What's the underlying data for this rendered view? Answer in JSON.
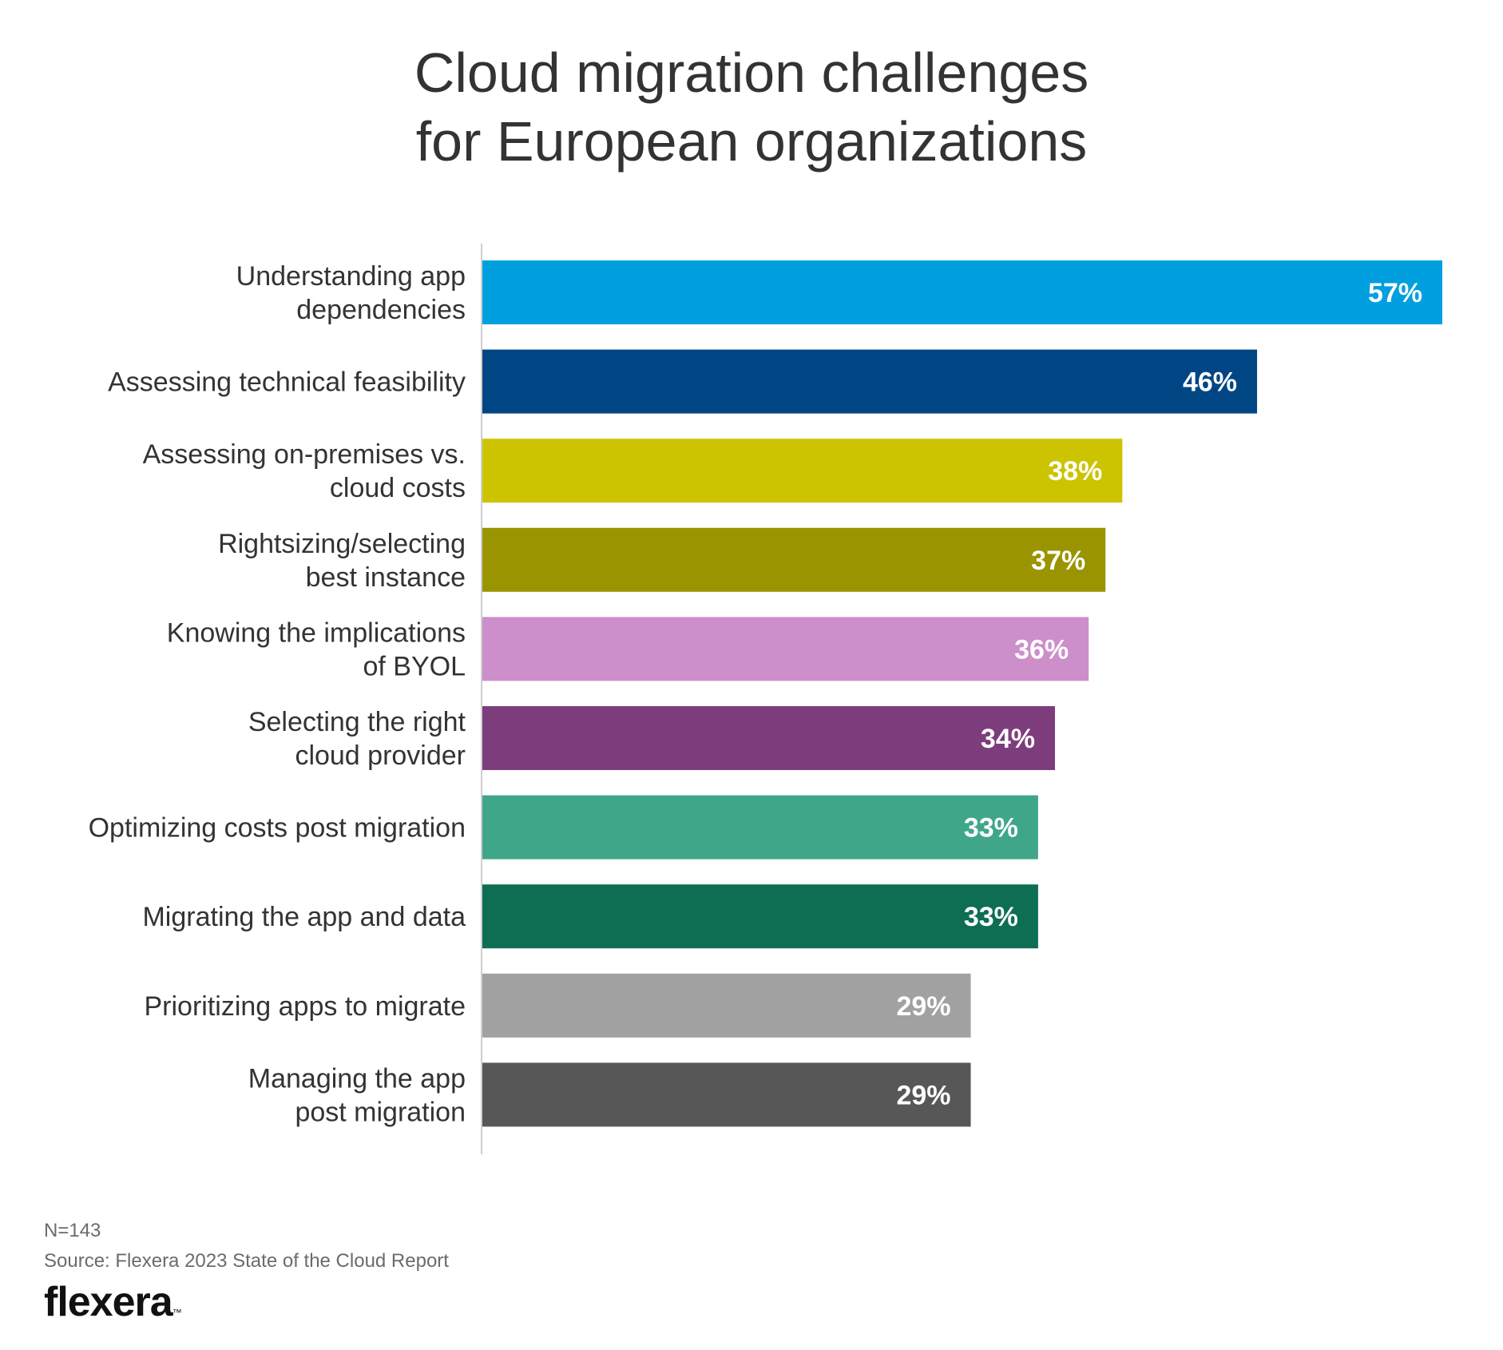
{
  "title_lines": [
    "Cloud migration challenges",
    "for European organizations"
  ],
  "chart_data": {
    "type": "bar",
    "orientation": "horizontal",
    "title": "Cloud migration challenges for European organizations",
    "categories": [
      [
        "Understanding app",
        "dependencies"
      ],
      [
        "Assessing technical feasibility"
      ],
      [
        "Assessing on-premises vs.",
        "cloud costs"
      ],
      [
        "Rightsizing/selecting",
        "best instance"
      ],
      [
        "Knowing the implications",
        "of BYOL"
      ],
      [
        "Selecting the right",
        "cloud provider"
      ],
      [
        "Optimizing costs post migration"
      ],
      [
        "Migrating the app and data"
      ],
      [
        "Prioritizing apps to migrate"
      ],
      [
        "Managing the app",
        "post migration"
      ]
    ],
    "values": [
      57,
      46,
      38,
      37,
      36,
      34,
      33,
      33,
      29,
      29
    ],
    "value_labels": [
      "57%",
      "46%",
      "38%",
      "37%",
      "36%",
      "34%",
      "33%",
      "33%",
      "29%",
      "29%"
    ],
    "colors": [
      "#009FDF",
      "#004684",
      "#CCC400",
      "#999400",
      "#CC8FCA",
      "#7D3D7C",
      "#40A68A",
      "#0D6E53",
      "#A1A1A1",
      "#575757"
    ],
    "xlim": [
      0,
      57
    ],
    "xlabel": "",
    "ylabel": "",
    "grid": false
  },
  "footnote": {
    "sample": "N=143",
    "source": "Source: Flexera 2023 State of the Cloud Report"
  },
  "brand": {
    "logo": "flexera",
    "trademark": "™"
  }
}
